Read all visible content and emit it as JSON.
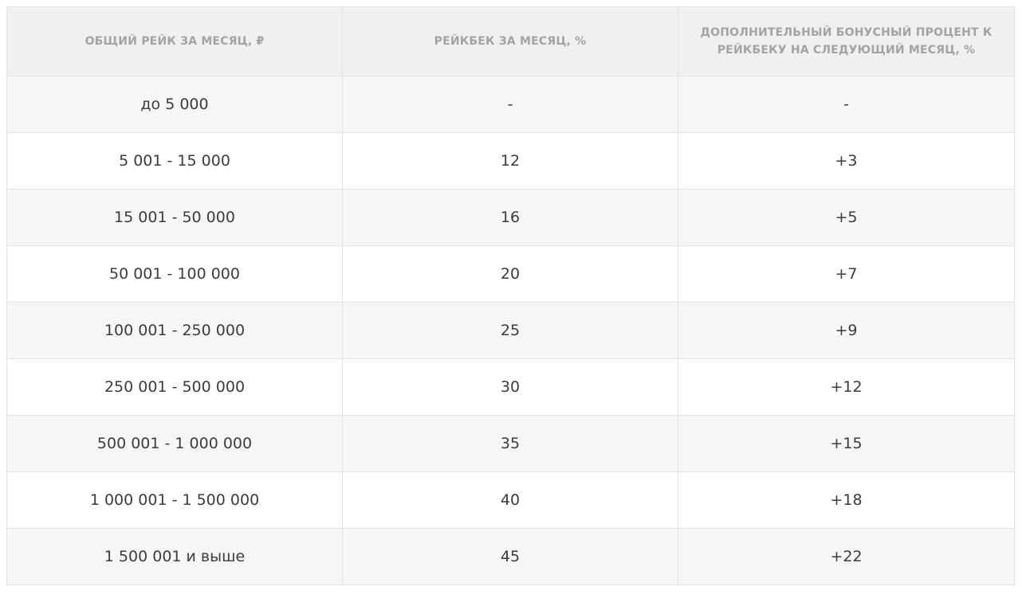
{
  "table": {
    "headers": [
      "ОБЩИЙ РЕЙК ЗА МЕСЯЦ, ₽",
      "РЕЙКБЕК ЗА МЕСЯЦ, %",
      "ДОПОЛНИТЕЛЬНЫЙ БОНУСНЫЙ ПРОЦЕНТ К РЕЙКБЕКУ НА СЛЕДУЮЩИЙ МЕСЯЦ, %"
    ],
    "rows": [
      [
        "до 5 000",
        "-",
        "-"
      ],
      [
        "5 001 - 15 000",
        "12",
        "+3"
      ],
      [
        "15 001 - 50 000",
        "16",
        "+5"
      ],
      [
        "50 001 - 100 000",
        "20",
        "+7"
      ],
      [
        "100 001 - 250 000",
        "25",
        "+9"
      ],
      [
        "250 001 - 500 000",
        "30",
        "+12"
      ],
      [
        "500 001 - 1 000 000",
        "35",
        "+15"
      ],
      [
        "1 000 001 - 1 500 000",
        "40",
        "+18"
      ],
      [
        "1 500 001 и выше",
        "45",
        "+22"
      ]
    ]
  }
}
